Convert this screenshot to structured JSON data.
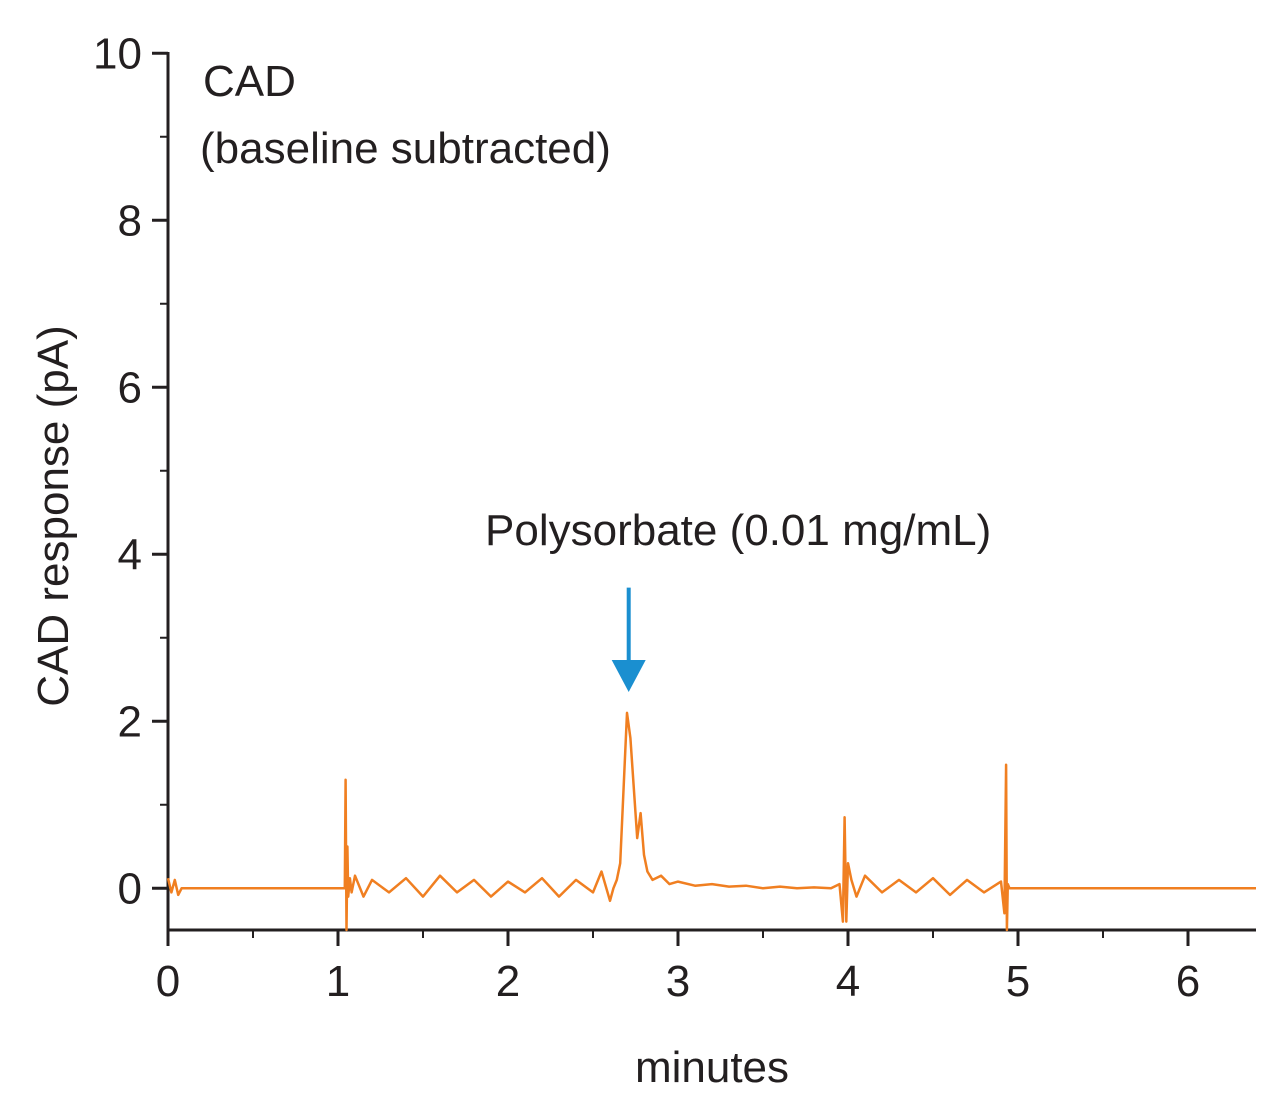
{
  "chart_data": {
    "type": "line",
    "title": "CAD",
    "subtitle": "(baseline subtracted)",
    "xlabel": "minutes",
    "ylabel": "CAD response (pA)",
    "xlim": [
      0,
      6.4
    ],
    "ylim": [
      -0.5,
      10
    ],
    "xticks": [
      0,
      1,
      2,
      3,
      4,
      5,
      6
    ],
    "xtick_labels": [
      "0",
      "1",
      "2",
      "3",
      "4",
      "5",
      "6"
    ],
    "yticks": [
      0,
      2,
      4,
      6,
      8,
      10
    ],
    "ytick_labels": [
      "0",
      "2",
      "4",
      "6",
      "8",
      "10"
    ],
    "grid": false,
    "line_color": "#f07f21",
    "arrow_color": "#1a8fd0",
    "annotation": {
      "text": "Polysorbate (0.01 mg/mL)",
      "x": 2.71,
      "y_from": 3.6,
      "y_to": 2.35
    },
    "series": [
      {
        "x": [
          0,
          0.02,
          0.04,
          0.06,
          0.08,
          0.2,
          0.5,
          0.8,
          1.0,
          1.04,
          1.045,
          1.05,
          1.055,
          1.06,
          1.07,
          1.08,
          1.1,
          1.15,
          1.2,
          1.3,
          1.4,
          1.5,
          1.6,
          1.7,
          1.8,
          1.9,
          2.0,
          2.1,
          2.2,
          2.3,
          2.4,
          2.5,
          2.55,
          2.6,
          2.62,
          2.64,
          2.66,
          2.68,
          2.7,
          2.72,
          2.74,
          2.76,
          2.78,
          2.8,
          2.82,
          2.85,
          2.9,
          2.95,
          3.0,
          3.1,
          3.2,
          3.3,
          3.4,
          3.5,
          3.6,
          3.7,
          3.8,
          3.9,
          3.95,
          3.97,
          3.98,
          3.99,
          4.0,
          4.02,
          4.05,
          4.1,
          4.2,
          4.3,
          4.4,
          4.5,
          4.6,
          4.7,
          4.8,
          4.9,
          4.92,
          4.93,
          4.935,
          4.94,
          4.95,
          5.0,
          5.5,
          6.0,
          6.4
        ],
        "y": [
          0.12,
          -0.05,
          0.1,
          -0.08,
          0.0,
          0.0,
          0.0,
          0.0,
          0.0,
          0.0,
          1.3,
          -0.5,
          0.5,
          -0.1,
          0.12,
          -0.05,
          0.15,
          -0.1,
          0.1,
          -0.05,
          0.12,
          -0.1,
          0.15,
          -0.05,
          0.1,
          -0.1,
          0.08,
          -0.05,
          0.12,
          -0.1,
          0.1,
          -0.05,
          0.2,
          -0.15,
          0.0,
          0.1,
          0.3,
          1.2,
          2.1,
          1.8,
          1.2,
          0.6,
          0.9,
          0.4,
          0.2,
          0.1,
          0.15,
          0.05,
          0.08,
          0.03,
          0.05,
          0.02,
          0.03,
          0.0,
          0.02,
          0.0,
          0.01,
          0.0,
          0.05,
          -0.4,
          0.85,
          -0.4,
          0.3,
          0.1,
          -0.1,
          0.15,
          -0.05,
          0.1,
          -0.05,
          0.12,
          -0.08,
          0.1,
          -0.05,
          0.08,
          -0.3,
          1.48,
          -0.5,
          0.05,
          0.0,
          0.0,
          0.0,
          0.0,
          0.0
        ]
      }
    ]
  }
}
